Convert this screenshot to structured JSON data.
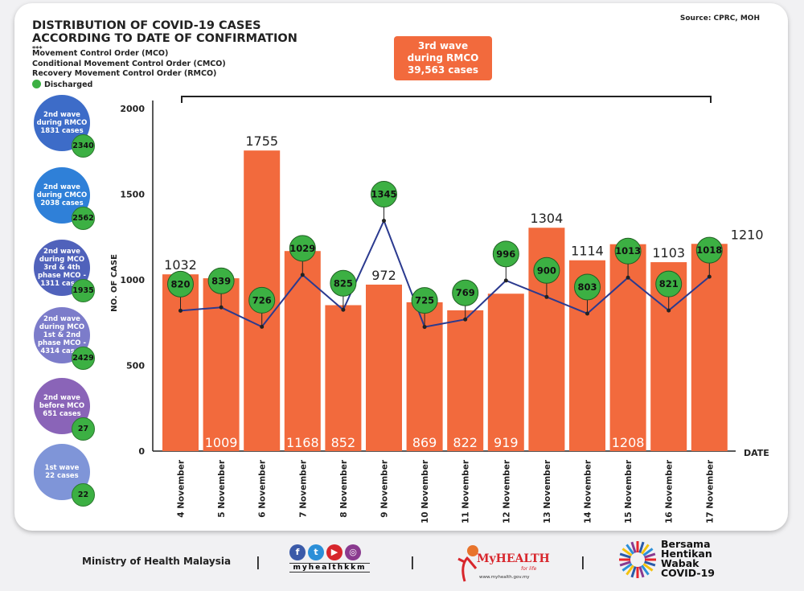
{
  "header": {
    "title_line1": "DISTRIBUTION OF COVID-19 CASES",
    "title_line2": "ACCORDING TO DATE OF CONFIRMATION",
    "dots": "***",
    "legend": [
      "Movement Control Order (MCO)",
      "Conditional Movement Control Order (CMCO)",
      "Recovery Movement Control Order (RMCO)"
    ],
    "discharged_label": "Discharged",
    "source": "Source: CPRC, MOH"
  },
  "callout": {
    "line1": "3rd wave",
    "line2": "during RMCO",
    "line3": "39,563 cases"
  },
  "waves": [
    {
      "lines": [
        "2nd wave",
        "during RMCO",
        "1831 cases"
      ],
      "discharged": "2340",
      "color": "#3d6cc8"
    },
    {
      "lines": [
        "2nd wave",
        "during CMCO",
        "2038 cases"
      ],
      "discharged": "2562",
      "color": "#2f80d8"
    },
    {
      "lines": [
        "2nd wave",
        "during MCO",
        "3rd & 4th",
        "phase MCO -",
        "1311 cases"
      ],
      "discharged": "1935",
      "color": "#5062bb"
    },
    {
      "lines": [
        "2nd wave",
        "during MCO",
        "1st & 2nd",
        "phase MCO -",
        "4314 cases"
      ],
      "discharged": "2429",
      "color": "#7c7cca"
    },
    {
      "lines": [
        "2nd wave",
        "before MCO",
        "651 cases"
      ],
      "discharged": "27",
      "color": "#8a64b8"
    },
    {
      "lines": [
        "1st wave",
        "22 cases"
      ],
      "discharged": "22",
      "color": "#7f95d8"
    }
  ],
  "chart_data": {
    "type": "bar",
    "ylabel": "NO. OF CASE",
    "xlabel": "DATE",
    "ylim": [
      0,
      2000
    ],
    "yticks": [
      0,
      500,
      1000,
      1500,
      2000
    ],
    "categories": [
      "4 November",
      "5 November",
      "6 November",
      "7 November",
      "8 November",
      "9 November",
      "10 November",
      "11 November",
      "12 November",
      "13 November",
      "14 November",
      "15 November",
      "16 November",
      "17 November"
    ],
    "series": [
      {
        "type": "bar",
        "values": [
          1032,
          1009,
          1755,
          1168,
          852,
          972,
          869,
          822,
          919,
          1304,
          1114,
          1208,
          1103,
          1210
        ],
        "color": "#f26a3d"
      },
      {
        "type": "line",
        "name": "Discharged",
        "values": [
          820,
          839,
          726,
          1029,
          825,
          1345,
          725,
          769,
          996,
          900,
          803,
          1013,
          821,
          1018
        ],
        "color": "#2b3a8f",
        "marker_color": "#3cb043"
      }
    ],
    "bar_label_inside": [
      false,
      true,
      false,
      true,
      true,
      false,
      true,
      true,
      true,
      false,
      false,
      true,
      false,
      false
    ]
  },
  "footer": {
    "ministry": "Ministry of Health Malaysia",
    "separator": "|",
    "social_handle": "myhealthkkm",
    "myhealth_logo": "MyHEALTH",
    "myhealth_tagline": "for life",
    "myhealth_url": "www.myhealth.gov.my",
    "campaign": [
      "Bersama",
      "Hentikan",
      "Wabak",
      "COVID-19"
    ]
  }
}
